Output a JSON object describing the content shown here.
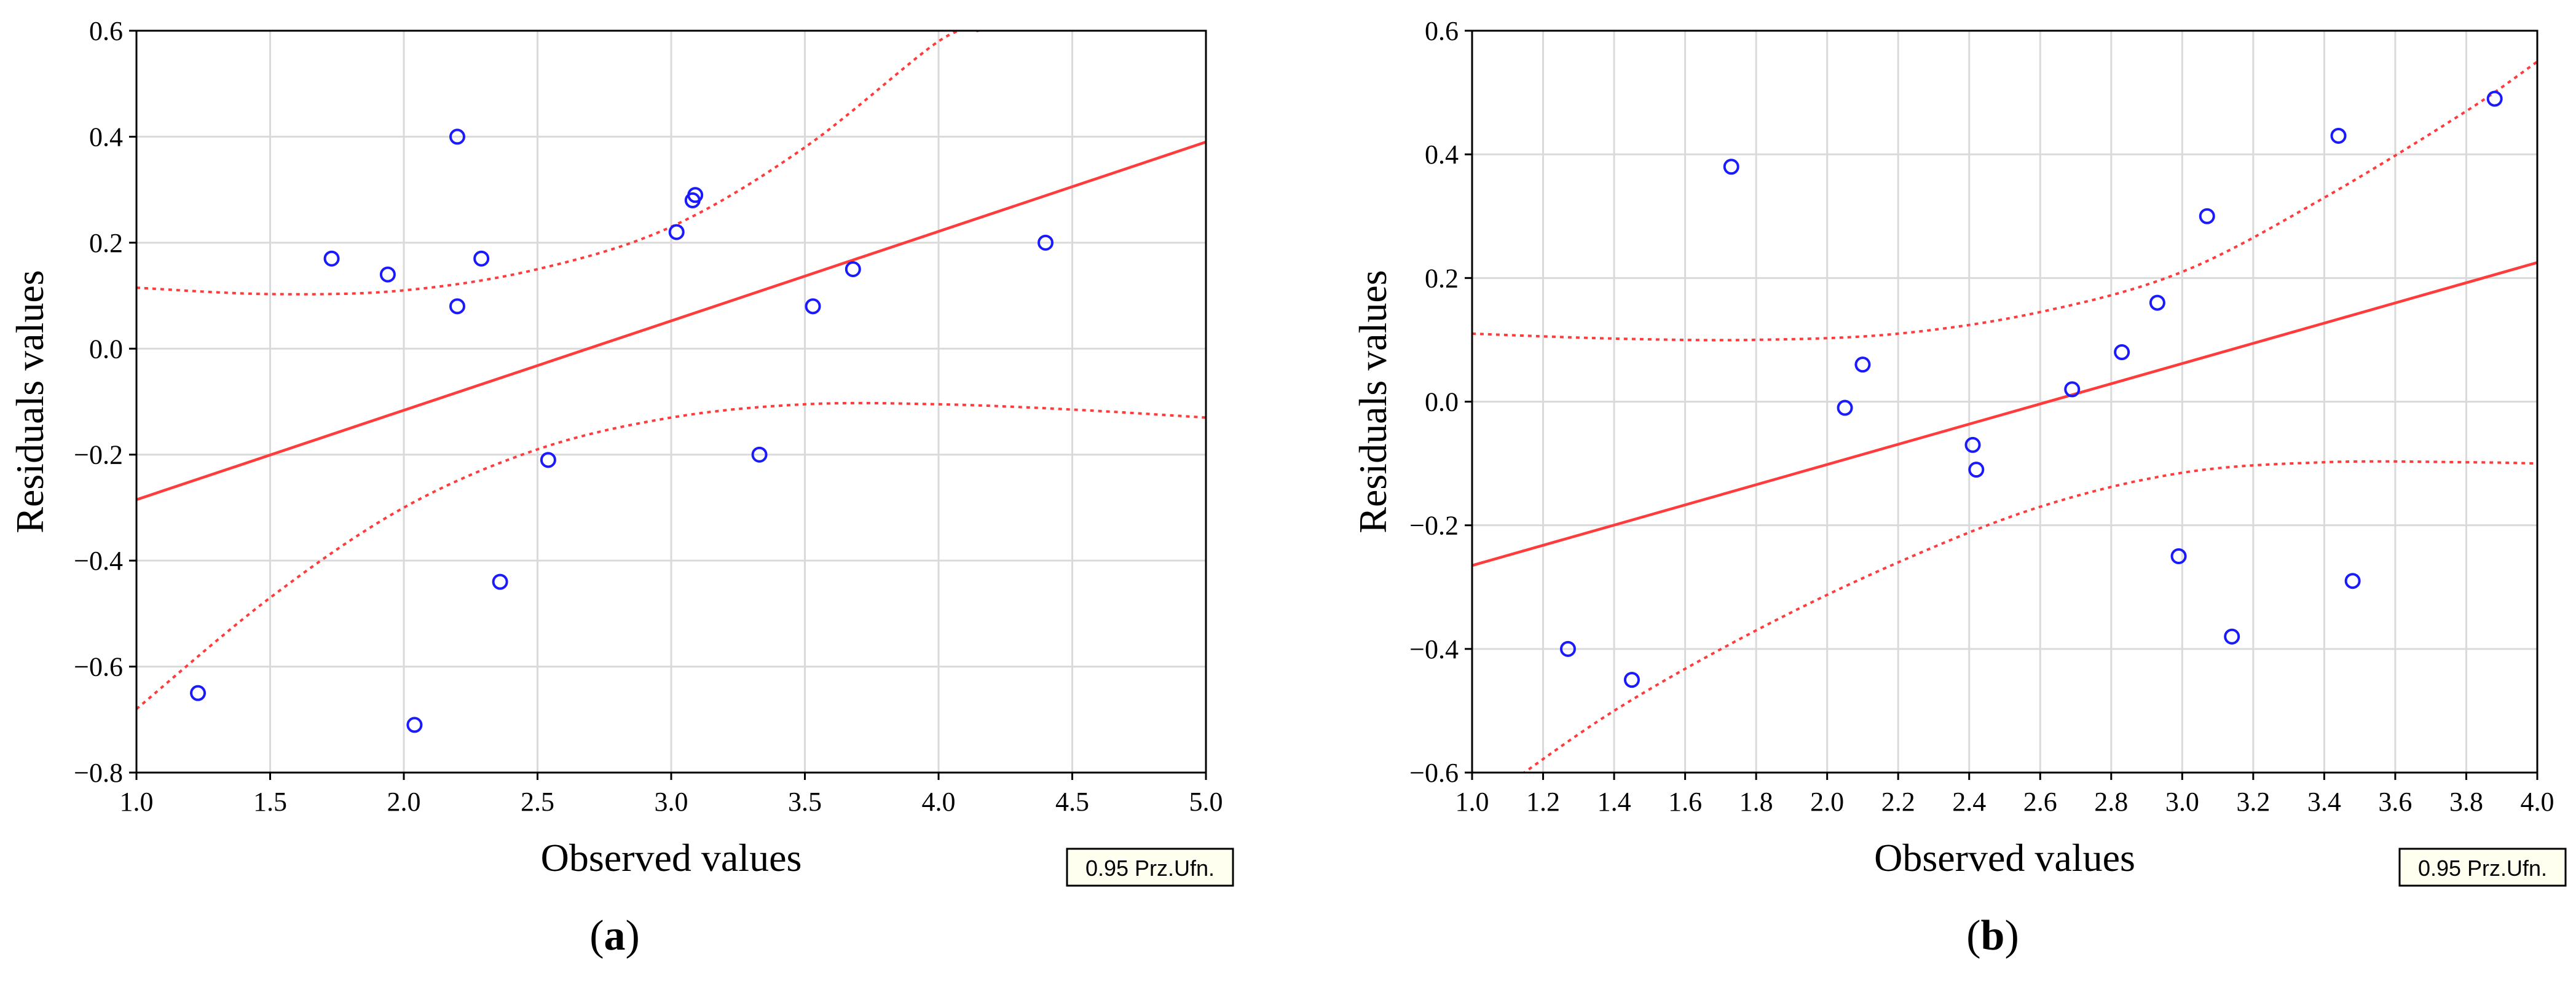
{
  "chart_data": [
    {
      "type": "scatter",
      "panel_label": "(a)",
      "xlabel": "Observed values",
      "ylabel": "Residuals values",
      "xlim": [
        1.0,
        5.0
      ],
      "ylim": [
        -0.8,
        0.6
      ],
      "xticks": [
        "1.0",
        "1.5",
        "2.0",
        "2.5",
        "3.0",
        "3.5",
        "4.0",
        "4.5",
        "5.0"
      ],
      "yticks": [
        "0.6",
        "0.4",
        "0.2",
        "0.0",
        "-0.2",
        "-0.4",
        "-0.6",
        "-0.8"
      ],
      "grid": true,
      "legend_box": "0.95 Prz.Ufn.",
      "points": [
        {
          "x": 1.23,
          "y": -0.65
        },
        {
          "x": 1.73,
          "y": 0.17
        },
        {
          "x": 1.94,
          "y": 0.14
        },
        {
          "x": 2.04,
          "y": -0.71
        },
        {
          "x": 2.2,
          "y": 0.4
        },
        {
          "x": 2.2,
          "y": 0.08
        },
        {
          "x": 2.29,
          "y": 0.17
        },
        {
          "x": 2.36,
          "y": -0.44
        },
        {
          "x": 2.54,
          "y": -0.21
        },
        {
          "x": 3.02,
          "y": 0.22
        },
        {
          "x": 3.08,
          "y": 0.28
        },
        {
          "x": 3.09,
          "y": 0.29
        },
        {
          "x": 3.33,
          "y": -0.2
        },
        {
          "x": 3.53,
          "y": 0.08
        },
        {
          "x": 3.68,
          "y": 0.15
        },
        {
          "x": 4.4,
          "y": 0.2
        }
      ],
      "fit_line": [
        {
          "x": 1.0,
          "y": -0.285
        },
        {
          "x": 5.0,
          "y": 0.39
        }
      ],
      "upper_band": [
        {
          "x": 1.0,
          "y": 0.115
        },
        {
          "x": 1.5,
          "y": 0.103
        },
        {
          "x": 2.0,
          "y": 0.11
        },
        {
          "x": 2.5,
          "y": 0.15
        },
        {
          "x": 3.0,
          "y": 0.23
        },
        {
          "x": 3.5,
          "y": 0.38
        },
        {
          "x": 4.0,
          "y": 0.58
        },
        {
          "x": 4.15,
          "y": 0.6
        }
      ],
      "lower_band": [
        {
          "x": 1.0,
          "y": -0.68
        },
        {
          "x": 1.5,
          "y": -0.47
        },
        {
          "x": 2.0,
          "y": -0.3
        },
        {
          "x": 2.5,
          "y": -0.19
        },
        {
          "x": 3.0,
          "y": -0.13
        },
        {
          "x": 3.5,
          "y": -0.105
        },
        {
          "x": 4.0,
          "y": -0.105
        },
        {
          "x": 4.5,
          "y": -0.115
        },
        {
          "x": 5.0,
          "y": -0.13
        }
      ],
      "colors": {
        "points": "#1a1aff",
        "fit": "#ff3b3b",
        "band": "#ff3b3b",
        "grid": "#dadada"
      }
    },
    {
      "type": "scatter",
      "panel_label": "(b)",
      "xlabel": "Observed values",
      "ylabel": "Residuals values",
      "xlim": [
        1.0,
        4.0
      ],
      "ylim": [
        -0.6,
        0.6
      ],
      "xticks": [
        "1.0",
        "1.2",
        "1.4",
        "1.6",
        "1.8",
        "2.0",
        "2.2",
        "2.4",
        "2.6",
        "2.8",
        "3.0",
        "3.2",
        "3.4",
        "3.6",
        "3.8",
        "4.0"
      ],
      "yticks": [
        "0.6",
        "0.4",
        "0.2",
        "0.0",
        "-0.2",
        "-0.4",
        "-0.6"
      ],
      "grid": true,
      "legend_box": "0.95 Prz.Ufn.",
      "points": [
        {
          "x": 1.27,
          "y": -0.4
        },
        {
          "x": 1.45,
          "y": -0.45
        },
        {
          "x": 1.73,
          "y": 0.38
        },
        {
          "x": 2.05,
          "y": -0.01
        },
        {
          "x": 2.1,
          "y": 0.06
        },
        {
          "x": 2.41,
          "y": -0.07
        },
        {
          "x": 2.42,
          "y": -0.11
        },
        {
          "x": 2.69,
          "y": 0.02
        },
        {
          "x": 2.83,
          "y": 0.08
        },
        {
          "x": 2.93,
          "y": 0.16
        },
        {
          "x": 2.99,
          "y": -0.25
        },
        {
          "x": 3.07,
          "y": 0.3
        },
        {
          "x": 3.14,
          "y": -0.38
        },
        {
          "x": 3.44,
          "y": 0.43
        },
        {
          "x": 3.48,
          "y": -0.29
        },
        {
          "x": 3.88,
          "y": 0.49
        }
      ],
      "fit_line": [
        {
          "x": 1.0,
          "y": -0.265
        },
        {
          "x": 4.0,
          "y": 0.225
        }
      ],
      "upper_band": [
        {
          "x": 1.0,
          "y": 0.11
        },
        {
          "x": 1.4,
          "y": 0.102
        },
        {
          "x": 1.8,
          "y": 0.1
        },
        {
          "x": 2.2,
          "y": 0.11
        },
        {
          "x": 2.6,
          "y": 0.145
        },
        {
          "x": 3.0,
          "y": 0.21
        },
        {
          "x": 3.4,
          "y": 0.33
        },
        {
          "x": 3.8,
          "y": 0.47
        },
        {
          "x": 4.0,
          "y": 0.55
        }
      ],
      "lower_band": [
        {
          "x": 1.05,
          "y": -0.64
        },
        {
          "x": 1.4,
          "y": -0.5
        },
        {
          "x": 1.8,
          "y": -0.37
        },
        {
          "x": 2.2,
          "y": -0.26
        },
        {
          "x": 2.6,
          "y": -0.17
        },
        {
          "x": 3.0,
          "y": -0.115
        },
        {
          "x": 3.4,
          "y": -0.098
        },
        {
          "x": 3.8,
          "y": -0.098
        },
        {
          "x": 4.0,
          "y": -0.1
        }
      ],
      "colors": {
        "points": "#1a1aff",
        "fit": "#ff3b3b",
        "band": "#ff3b3b",
        "grid": "#dadada"
      }
    }
  ]
}
